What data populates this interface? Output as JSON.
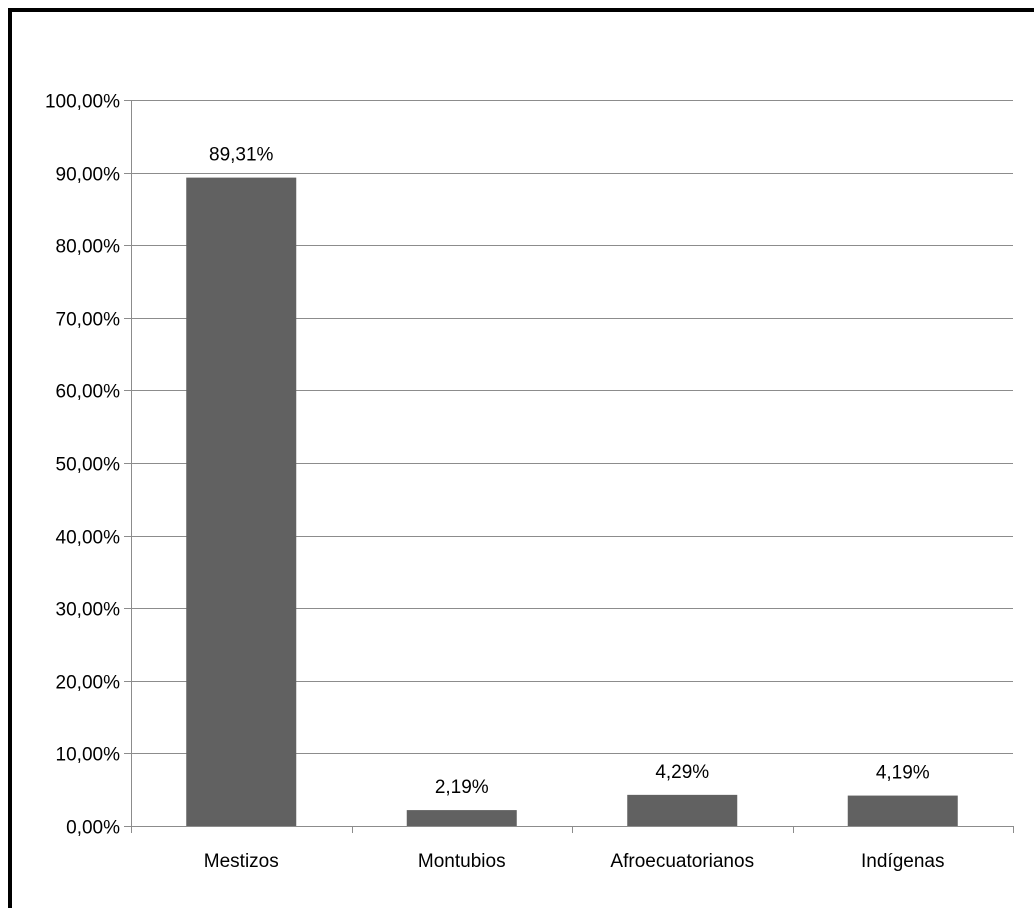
{
  "chart_data": {
    "type": "bar",
    "title": "",
    "xlabel": "",
    "ylabel": "",
    "categories": [
      "Mestizos",
      "Montubios",
      "Afroecuatorianos",
      "Indígenas"
    ],
    "values": [
      89.31,
      2.19,
      4.29,
      4.19
    ],
    "data_labels": [
      "89,31%",
      "2,19%",
      "4,29%",
      "4,19%"
    ],
    "ylim": [
      0,
      100
    ],
    "yticks": [
      0,
      10,
      20,
      30,
      40,
      50,
      60,
      70,
      80,
      90,
      100
    ],
    "ytick_labels": [
      "0,00%",
      "10,00%",
      "20,00%",
      "30,00%",
      "40,00%",
      "50,00%",
      "60,00%",
      "70,00%",
      "80,00%",
      "90,00%",
      "100,00%"
    ],
    "grid": true,
    "legend": "none",
    "bar_color": "#616161",
    "grid_color": "#8c8c8c",
    "axis_color": "#8c8c8c",
    "frame_color": "#000000"
  }
}
